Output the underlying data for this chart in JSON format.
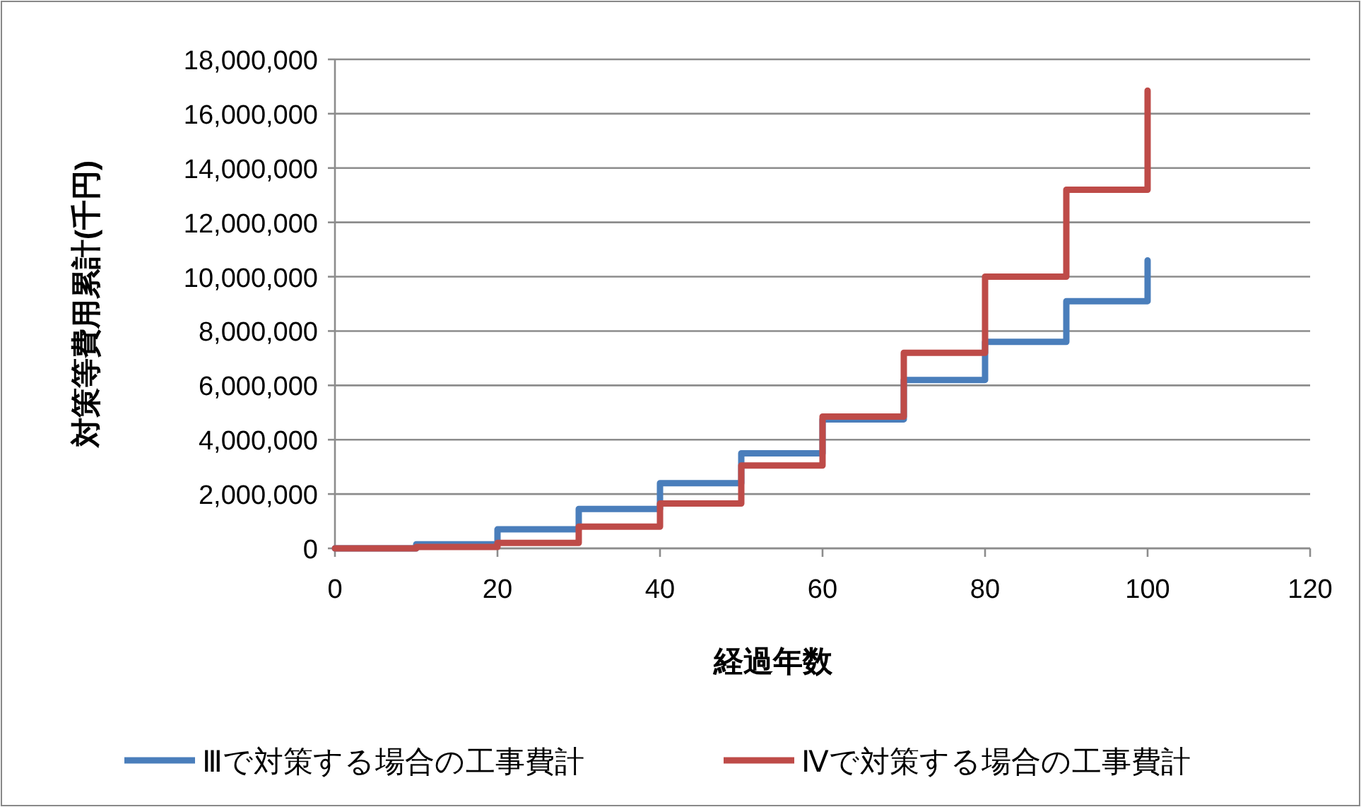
{
  "chart_data": {
    "type": "step",
    "xlabel": "経過年数",
    "ylabel": "対策等費用累計(千円)",
    "x": [
      0,
      10,
      20,
      30,
      40,
      50,
      60,
      70,
      80,
      90,
      100
    ],
    "series": [
      {
        "name": "Ⅲで対策する場合の工事費計",
        "color": "#4a7ebb",
        "values": [
          0,
          150000,
          700000,
          1450000,
          2400000,
          3500000,
          4750000,
          6200000,
          7600000,
          9100000,
          10600000
        ]
      },
      {
        "name": "Ⅳで対策する場合の工事費計",
        "color": "#be4b48",
        "values": [
          0,
          50000,
          200000,
          800000,
          1650000,
          3050000,
          4850000,
          7200000,
          10000000,
          13200000,
          16850000
        ]
      }
    ],
    "xlim": [
      0,
      120
    ],
    "xticks": [
      0,
      20,
      40,
      60,
      80,
      100,
      120
    ],
    "ylim": [
      0,
      18000000
    ],
    "yticks": [
      {
        "value": 0,
        "label": "0"
      },
      {
        "value": 2000000,
        "label": "2,000,000"
      },
      {
        "value": 4000000,
        "label": "4,000,000"
      },
      {
        "value": 6000000,
        "label": "6,000,000"
      },
      {
        "value": 8000000,
        "label": "8,000,000"
      },
      {
        "value": 10000000,
        "label": "10,000,000"
      },
      {
        "value": 12000000,
        "label": "12,000,000"
      },
      {
        "value": 14000000,
        "label": "14,000,000"
      },
      {
        "value": 16000000,
        "label": "16,000,000"
      },
      {
        "value": 18000000,
        "label": "18,000,000"
      }
    ],
    "grid": "y",
    "legend": "bottom",
    "line_style": "solid",
    "marker": "none"
  }
}
